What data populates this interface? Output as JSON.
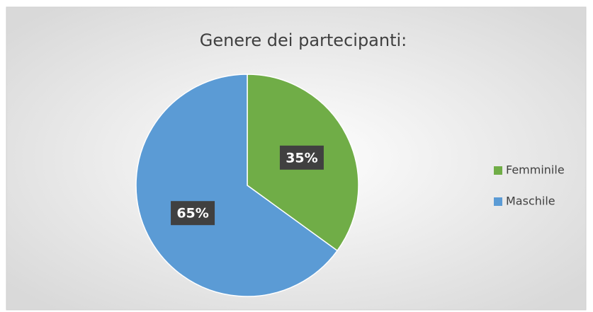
{
  "chart_data": {
    "type": "pie",
    "title": "Genere dei partecipanti:",
    "categories": [
      "Femminile",
      "Maschile"
    ],
    "values": [
      35,
      65
    ],
    "value_labels": [
      "35%",
      "65%"
    ],
    "colors": [
      "#70ad47",
      "#5b9bd5"
    ],
    "legend": "right"
  }
}
